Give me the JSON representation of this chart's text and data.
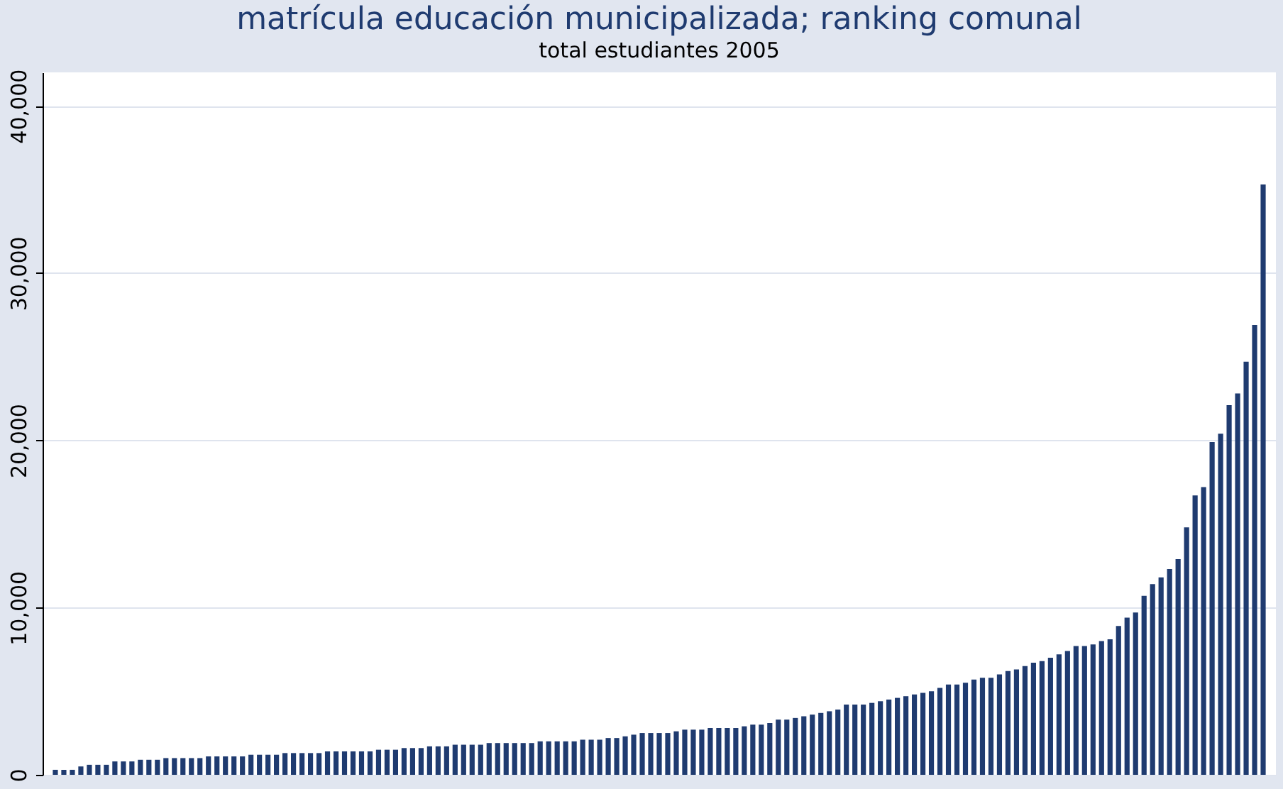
{
  "chart_data": {
    "type": "bar",
    "title": "matrícula educación municipalizada; ranking comunal",
    "subtitle": "total estudiantes 2005",
    "categories": [
      null,
      null,
      null,
      null,
      null,
      null,
      null,
      null,
      null,
      null,
      null,
      null,
      null,
      null,
      null,
      null,
      null,
      null,
      null,
      null,
      null,
      null,
      null,
      null,
      null,
      null,
      null,
      null,
      null,
      null,
      null,
      null,
      null,
      null,
      null,
      null,
      null,
      null,
      null,
      null,
      null,
      null,
      null,
      null,
      null,
      null,
      null,
      null,
      null,
      null,
      null,
      null,
      null,
      null,
      null,
      null,
      null,
      null,
      null,
      null,
      null,
      null,
      null,
      null,
      null,
      null,
      null,
      null,
      null,
      null,
      null,
      null,
      null,
      null,
      null,
      null,
      null,
      null,
      null,
      null,
      null,
      null,
      null,
      null,
      null,
      null,
      null,
      null,
      null,
      null,
      null,
      null,
      null,
      null,
      null,
      null,
      null,
      null,
      null,
      null,
      null,
      null,
      null,
      null,
      null,
      null,
      null,
      null,
      null,
      null,
      null,
      null,
      null,
      null,
      null,
      null,
      null,
      null,
      null,
      null,
      null,
      null,
      null,
      null,
      null,
      null,
      null,
      null,
      null,
      null,
      null,
      null,
      null,
      null,
      null,
      null,
      null,
      null,
      null,
      null,
      null,
      null,
      null
    ],
    "values": [
      300,
      300,
      300,
      500,
      600,
      600,
      600,
      800,
      800,
      800,
      900,
      900,
      900,
      1000,
      1000,
      1000,
      1000,
      1000,
      1100,
      1100,
      1100,
      1100,
      1100,
      1200,
      1200,
      1200,
      1200,
      1300,
      1300,
      1300,
      1300,
      1300,
      1400,
      1400,
      1400,
      1400,
      1400,
      1400,
      1500,
      1500,
      1500,
      1600,
      1600,
      1600,
      1700,
      1700,
      1700,
      1800,
      1800,
      1800,
      1800,
      1900,
      1900,
      1900,
      1900,
      1900,
      1900,
      2000,
      2000,
      2000,
      2000,
      2000,
      2100,
      2100,
      2100,
      2200,
      2200,
      2300,
      2400,
      2500,
      2500,
      2500,
      2500,
      2600,
      2700,
      2700,
      2700,
      2800,
      2800,
      2800,
      2800,
      2900,
      3000,
      3000,
      3100,
      3300,
      3300,
      3400,
      3500,
      3600,
      3700,
      3800,
      3900,
      4200,
      4200,
      4200,
      4300,
      4400,
      4500,
      4600,
      4700,
      4800,
      4900,
      5000,
      5200,
      5400,
      5400,
      5500,
      5700,
      5800,
      5800,
      6000,
      6200,
      6300,
      6500,
      6700,
      6800,
      7000,
      7200,
      7400,
      7700,
      7700,
      7800,
      8000,
      8100,
      8900,
      9400,
      9700,
      10700,
      11400,
      11800,
      12300,
      12900,
      14800,
      16700,
      17200,
      19900,
      20400,
      22100,
      22800,
      24700,
      26900,
      35300
    ],
    "color": "#1f3b70",
    "ylim": [
      0,
      42000
    ],
    "yticks": [
      0,
      {
        "value": 10000,
        "label": "10,000"
      },
      {
        "value": 20000,
        "label": "20,000"
      },
      {
        "value": 30000,
        "label": "30,000"
      },
      {
        "value": 40000,
        "label": "40,000"
      }
    ],
    "grid": "y",
    "tick_labels": "y"
  }
}
